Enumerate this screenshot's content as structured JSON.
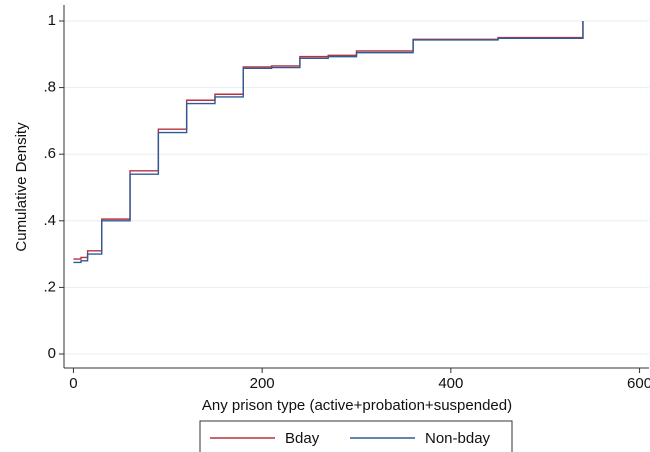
{
  "chart_data": {
    "type": "line",
    "x_label": "Any prison type (active+probation+suspended)",
    "y_label": "Cumulative Density",
    "x": [
      0,
      8,
      8,
      15,
      15,
      30,
      30,
      60,
      60,
      90,
      90,
      120,
      120,
      150,
      150,
      180,
      180,
      210,
      210,
      240,
      240,
      270,
      270,
      300,
      300,
      360,
      360,
      450,
      450,
      540,
      540
    ],
    "series": [
      {
        "name": "Bday",
        "color": "#b5323e",
        "values": [
          0.285,
          0.285,
          0.29,
          0.29,
          0.31,
          0.31,
          0.405,
          0.405,
          0.55,
          0.55,
          0.675,
          0.675,
          0.762,
          0.762,
          0.78,
          0.78,
          0.862,
          0.862,
          0.865,
          0.865,
          0.893,
          0.893,
          0.897,
          0.897,
          0.91,
          0.91,
          0.945,
          0.945,
          0.95,
          0.95,
          1.0
        ]
      },
      {
        "name": "Non-bday",
        "color": "#2f5c99",
        "values": [
          0.275,
          0.275,
          0.28,
          0.28,
          0.3,
          0.3,
          0.4,
          0.4,
          0.54,
          0.54,
          0.665,
          0.665,
          0.752,
          0.752,
          0.772,
          0.772,
          0.858,
          0.858,
          0.86,
          0.86,
          0.888,
          0.888,
          0.893,
          0.893,
          0.905,
          0.905,
          0.943,
          0.943,
          0.948,
          0.948,
          1.0
        ]
      }
    ],
    "xlim": [
      -10,
      610
    ],
    "ylim": [
      -0.042,
      1.048
    ],
    "xticks": [
      0,
      200,
      400,
      600
    ],
    "yticks": [
      0,
      {
        "value": 0.2,
        "label": ".2"
      },
      {
        "value": 0.4,
        "label": ".4"
      },
      {
        "value": 0.6,
        "label": ".6"
      },
      {
        "value": 0.8,
        "label": ".8"
      },
      1
    ],
    "grid": true,
    "legend": "bottom"
  }
}
